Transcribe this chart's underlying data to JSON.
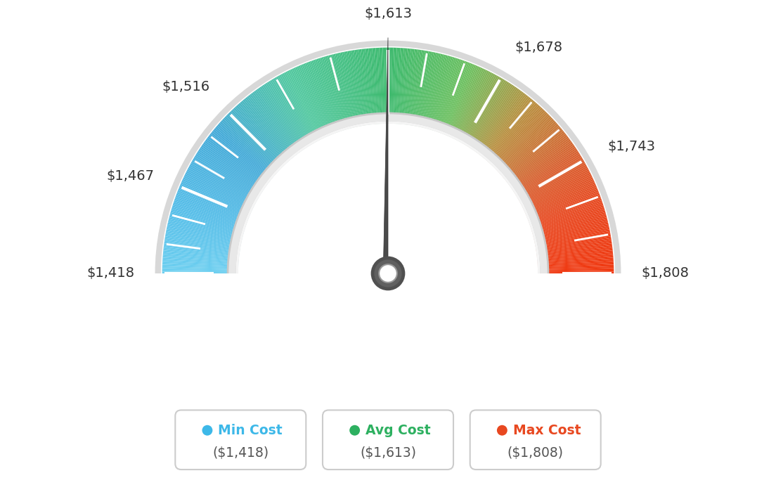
{
  "min_val": 1418,
  "max_val": 1808,
  "avg_val": 1613,
  "tick_labels": [
    "$1,418",
    "$1,467",
    "$1,516",
    "$1,613",
    "$1,678",
    "$1,743",
    "$1,808"
  ],
  "tick_values": [
    1418,
    1467,
    1516,
    1613,
    1678,
    1743,
    1808
  ],
  "legend_items": [
    {
      "label": "Min Cost",
      "sublabel": "($1,418)",
      "color": "#3db8e8"
    },
    {
      "label": "Avg Cost",
      "sublabel": "($1,613)",
      "color": "#2db060"
    },
    {
      "label": "Max Cost",
      "sublabel": "($1,808)",
      "color": "#e84820"
    }
  ],
  "bg_color": "#ffffff",
  "gradient_stops": [
    [
      0.0,
      "#6dcff0"
    ],
    [
      0.1,
      "#55bde8"
    ],
    [
      0.22,
      "#44aad8"
    ],
    [
      0.35,
      "#52c8a0"
    ],
    [
      0.5,
      "#3dba6e"
    ],
    [
      0.62,
      "#6dc060"
    ],
    [
      0.72,
      "#b89040"
    ],
    [
      0.82,
      "#d86030"
    ],
    [
      0.9,
      "#e84820"
    ],
    [
      1.0,
      "#f03810"
    ]
  ]
}
